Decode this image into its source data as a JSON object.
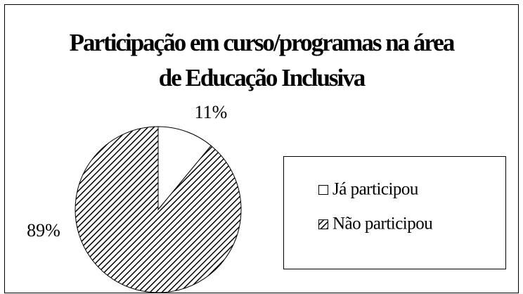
{
  "chart_data": {
    "type": "pie",
    "title": "Participação em curso/programas na área de Educação Inclusiva",
    "categories": [
      "Já participou",
      "Não participou"
    ],
    "values": [
      11,
      89
    ],
    "value_labels": [
      "11%",
      "89%"
    ],
    "colors": [
      "#ffffff",
      "hatch"
    ],
    "legend": "right"
  }
}
